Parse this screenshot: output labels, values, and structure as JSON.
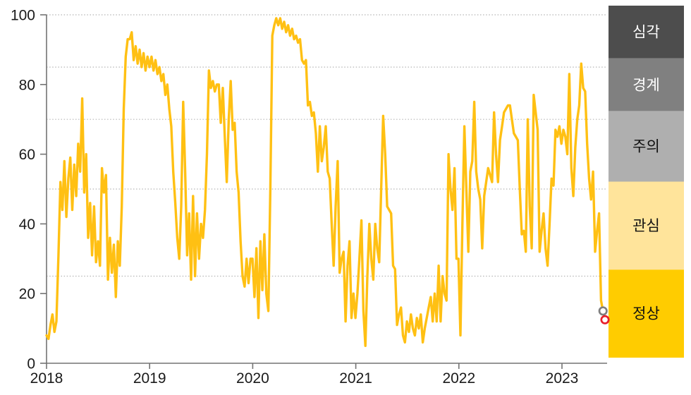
{
  "chart_data": {
    "type": "line",
    "title": "",
    "x_axis": {
      "tick_labels": [
        "2018",
        "2019",
        "2020",
        "2021",
        "2022",
        "2023"
      ],
      "start_year": 2018,
      "step": "weekly"
    },
    "y_axis": {
      "min": 0,
      "max": 100,
      "ticks": [
        0,
        20,
        40,
        60,
        80,
        100
      ]
    },
    "gridline_values": [
      25,
      50,
      70,
      85,
      100
    ],
    "grid_on": true,
    "legend_position": "right-band-column",
    "risk_bands": [
      {
        "label": "심각",
        "range": [
          85,
          100
        ],
        "color": "#4D4D4D",
        "text_color": "#FFFFFF"
      },
      {
        "label": "경계",
        "range": [
          70,
          85
        ],
        "color": "#808080",
        "text_color": "#FFFFFF"
      },
      {
        "label": "주의",
        "range": [
          50,
          70
        ],
        "color": "#AFAFAF",
        "text_color": "#111111"
      },
      {
        "label": "관심",
        "range": [
          25,
          50
        ],
        "color": "#FFE49B",
        "text_color": "#111111"
      },
      {
        "label": "정상",
        "range": [
          0,
          25
        ],
        "color": "#FFCC00",
        "text_color": "#111111"
      }
    ],
    "series": [
      {
        "name": "",
        "color": "#FFC013",
        "values": [
          8,
          7,
          11,
          14,
          9,
          12,
          31,
          52,
          44,
          58,
          42,
          53,
          59,
          44,
          57,
          48,
          63,
          55,
          76,
          49,
          60,
          36,
          46,
          31,
          45,
          29,
          35,
          28,
          56,
          49,
          54,
          24,
          36,
          26,
          34,
          19,
          35,
          28,
          45,
          73,
          88,
          93,
          93,
          95,
          87,
          91,
          86,
          90,
          85,
          89,
          84,
          88,
          85,
          88,
          84,
          87,
          83,
          85,
          81,
          83,
          77,
          80,
          73,
          68,
          55,
          46,
          36,
          30,
          45,
          75,
          55,
          31,
          43,
          24,
          48,
          25,
          43,
          30,
          40,
          36,
          44,
          60,
          84,
          79,
          81,
          78,
          80,
          80,
          69,
          79,
          65,
          52,
          70,
          81,
          67,
          69,
          55,
          49,
          35,
          25,
          22,
          30,
          23,
          30,
          30,
          19,
          33,
          13,
          35,
          21,
          37,
          20,
          15,
          50,
          94,
          97,
          99,
          97,
          99,
          96,
          98,
          95,
          97,
          94,
          96,
          93,
          94,
          92,
          93,
          87,
          86,
          87,
          74,
          75,
          71,
          72,
          66,
          55,
          68,
          58,
          62,
          68,
          55,
          53,
          40,
          28,
          45,
          58,
          26,
          30,
          32,
          12,
          28,
          35,
          13,
          20,
          13,
          20,
          30,
          41,
          15,
          5,
          25,
          40,
          30,
          24,
          40,
          33,
          29,
          50,
          71,
          60,
          45,
          44,
          43,
          28,
          27,
          11,
          14,
          16,
          8,
          6,
          12,
          9,
          14,
          10,
          8,
          13,
          10,
          14,
          6,
          10,
          13,
          16,
          19,
          12,
          20,
          12,
          28,
          12,
          25,
          20,
          18,
          60,
          50,
          44,
          56,
          30,
          30,
          8,
          40,
          68,
          50,
          32,
          55,
          58,
          75,
          55,
          50,
          47,
          33,
          48,
          52,
          56,
          54,
          52,
          72,
          60,
          52,
          64,
          68,
          72,
          73,
          74,
          74,
          70,
          66,
          65,
          64,
          50,
          37,
          38,
          32,
          70,
          45,
          33,
          77,
          72,
          67,
          32,
          38,
          43,
          33,
          28,
          40,
          53,
          51,
          67,
          65,
          68,
          63,
          67,
          65,
          60,
          83,
          56,
          48,
          62,
          70,
          74,
          86,
          79,
          78,
          63,
          53,
          47,
          55,
          32,
          38,
          43,
          18,
          15,
          12.5
        ]
      }
    ],
    "end_markers": [
      {
        "offset_from_end": 1,
        "value": 15,
        "color": "#7F7F7F"
      },
      {
        "offset_from_end": 0,
        "value": 12.5,
        "color": "#E8202C"
      }
    ],
    "colors": {
      "line": "#FFC013",
      "gridline": "#B5B5B5",
      "axis": "#737373",
      "tick_label": "#1A1A1A"
    }
  }
}
